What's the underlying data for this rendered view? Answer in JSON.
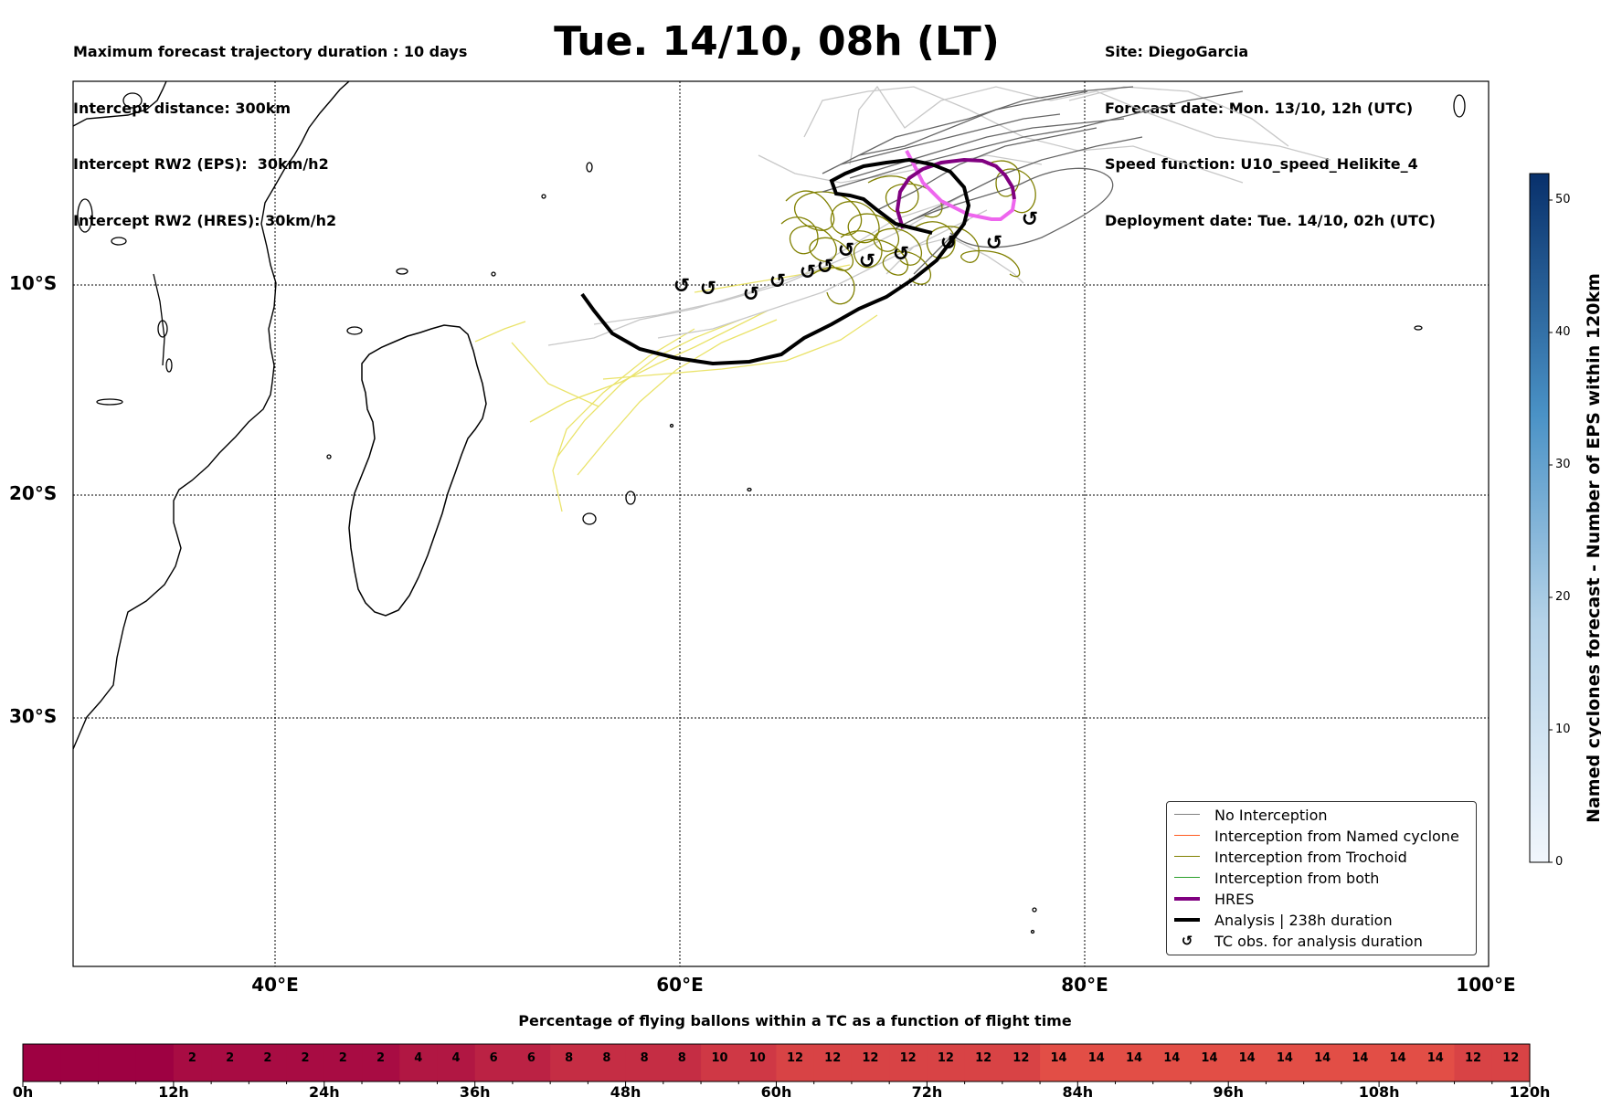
{
  "header": {
    "title": "Tue. 14/10, 08h (LT)",
    "left": [
      "Maximum forecast trajectory duration : 10 days",
      "Intercept distance: 300km",
      "Intercept RW2 (EPS):  30km/h2",
      "Intercept RW2 (HRES): 30km/h2"
    ],
    "right": [
      "Site: DiegoGarcia",
      "Forecast date: Mon. 13/10, 12h (UTC)",
      "Speed function: U10_speed_Helikite_4",
      "Deployment date: Tue. 14/10, 02h (UTC)"
    ]
  },
  "map": {
    "lat_labels": [
      "10°S",
      "20°S",
      "30°S"
    ],
    "lon_labels": [
      "40°E",
      "60°E",
      "80°E",
      "100°E"
    ],
    "extent": {
      "lon": [
        30,
        100
      ],
      "lat": [
        -42,
        0
      ]
    },
    "site_marker_icon": "tc-obs-icon"
  },
  "legend": {
    "items": [
      {
        "label": "No Interception",
        "color": "#808080",
        "style": "thin"
      },
      {
        "label": "Interception from Named cyclone",
        "color": "#ff5a1f",
        "style": "thin"
      },
      {
        "label": "Interception from Trochoid",
        "color": "#808000",
        "style": "thin"
      },
      {
        "label": "Interception from both",
        "color": "#2ca02c",
        "style": "thin"
      },
      {
        "label": "HRES",
        "color": "#800080",
        "style": "thick"
      },
      {
        "label": "Analysis | 238h duration",
        "color": "#000000",
        "style": "thick"
      },
      {
        "label": "TC obs. for analysis duration",
        "color": "#000000",
        "style": "symbol"
      }
    ]
  },
  "colorbar": {
    "label": "Named cyclones forecast - Number of EPS within 120km",
    "ticks": [
      "0",
      "10",
      "20",
      "30",
      "40",
      "50"
    ],
    "range": [
      0,
      52
    ],
    "colors": [
      "#f1f6fc",
      "#08306b"
    ]
  },
  "heatbar": {
    "title": "Percentage of flying ballons within a TC as a function of flight time",
    "values": [
      0,
      0,
      0,
      0,
      2,
      2,
      2,
      2,
      2,
      2,
      4,
      4,
      6,
      6,
      8,
      8,
      8,
      8,
      10,
      10,
      12,
      12,
      12,
      12,
      12,
      12,
      12,
      14,
      14,
      14,
      14,
      14,
      14,
      14,
      14,
      14,
      14,
      14,
      12,
      12
    ],
    "labels": [
      "",
      "",
      "",
      "",
      "2",
      "2",
      "2",
      "2",
      "2",
      "2",
      "4",
      "4",
      "6",
      "6",
      "8",
      "8",
      "8",
      "8",
      "10",
      "10",
      "12",
      "12",
      "12",
      "12",
      "12",
      "12",
      "12",
      "14",
      "14",
      "14",
      "14",
      "14",
      "14",
      "14",
      "14",
      "14",
      "14",
      "14",
      "12",
      "12"
    ],
    "ticks": [
      "0h",
      "12h",
      "24h",
      "36h",
      "48h",
      "60h",
      "72h",
      "84h",
      "96h",
      "108h",
      "120h"
    ]
  },
  "chart_data": {
    "type": "heatmap",
    "title": "Percentage of flying ballons within a TC as a function of flight time",
    "x": [
      "0h",
      "3h",
      "6h",
      "9h",
      "12h",
      "15h",
      "18h",
      "21h",
      "24h",
      "27h",
      "30h",
      "33h",
      "36h",
      "39h",
      "42h",
      "45h",
      "48h",
      "51h",
      "54h",
      "57h",
      "60h",
      "63h",
      "66h",
      "69h",
      "72h",
      "75h",
      "78h",
      "81h",
      "84h",
      "87h",
      "90h",
      "93h",
      "96h",
      "99h",
      "102h",
      "105h",
      "108h",
      "111h",
      "114h",
      "117h"
    ],
    "values": [
      0,
      0,
      0,
      0,
      2,
      2,
      2,
      2,
      2,
      2,
      4,
      4,
      6,
      6,
      8,
      8,
      8,
      8,
      10,
      10,
      12,
      12,
      12,
      12,
      12,
      12,
      12,
      14,
      14,
      14,
      14,
      14,
      14,
      14,
      14,
      14,
      14,
      14,
      12,
      12
    ]
  }
}
